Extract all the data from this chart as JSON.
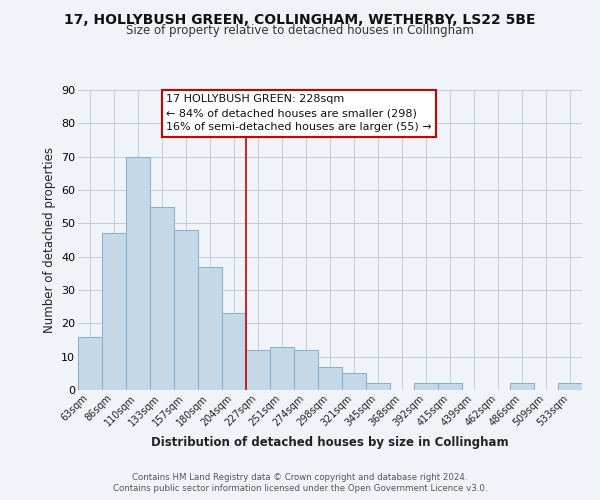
{
  "title1": "17, HOLLYBUSH GREEN, COLLINGHAM, WETHERBY, LS22 5BE",
  "title2": "Size of property relative to detached houses in Collingham",
  "xlabel": "Distribution of detached houses by size in Collingham",
  "ylabel": "Number of detached properties",
  "bar_labels": [
    "63sqm",
    "86sqm",
    "110sqm",
    "133sqm",
    "157sqm",
    "180sqm",
    "204sqm",
    "227sqm",
    "251sqm",
    "274sqm",
    "298sqm",
    "321sqm",
    "345sqm",
    "368sqm",
    "392sqm",
    "415sqm",
    "439sqm",
    "462sqm",
    "486sqm",
    "509sqm",
    "533sqm"
  ],
  "bar_heights": [
    16,
    47,
    70,
    55,
    48,
    37,
    23,
    12,
    13,
    12,
    7,
    5,
    2,
    0,
    2,
    2,
    0,
    0,
    2,
    0,
    2
  ],
  "bar_color": "#c5d8e8",
  "bar_edgecolor": "#7eb0d4",
  "vline_color": "#cc0000",
  "ylim": [
    0,
    90
  ],
  "yticks": [
    0,
    10,
    20,
    30,
    40,
    50,
    60,
    70,
    80,
    90
  ],
  "annotation_title": "17 HOLLYBUSH GREEN: 228sqm",
  "annotation_line1": "← 84% of detached houses are smaller (298)",
  "annotation_line2": "16% of semi-detached houses are larger (55) →",
  "annotation_box_color": "#ffffff",
  "annotation_box_edgecolor": "#cc0000",
  "footer1": "Contains HM Land Registry data © Crown copyright and database right 2024.",
  "footer2": "Contains public sector information licensed under the Open Government Licence v3.0.",
  "bg_color": "#f0f4f8",
  "white_bg": "#ffffff"
}
